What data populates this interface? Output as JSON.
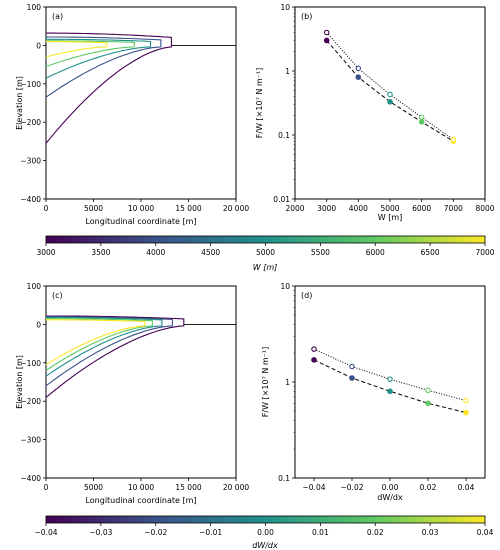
{
  "panels": [
    {
      "label": "(a)",
      "xlabel": "Longitudinal coordinate [m]",
      "ylabel": "Elevation [m]",
      "xticks": [
        "0",
        "5000",
        "10 000",
        "15 000",
        "20 000"
      ],
      "yticks": [
        "100",
        "0",
        "−100",
        "−200",
        "−300",
        "−400"
      ]
    },
    {
      "label": "(b)",
      "xlabel": "W [m]",
      "ylabel": "F/W [×10⁷ N m⁻¹]",
      "xticks": [
        "2000",
        "3000",
        "4000",
        "5000",
        "6000",
        "7000",
        "8000"
      ],
      "yticks": [
        "10",
        "1",
        "0.1",
        "0.01"
      ]
    },
    {
      "label": "(c)",
      "xlabel": "Longitudinal coordinate [m]",
      "ylabel": "Elevation [m]",
      "xticks": [
        "0",
        "5000",
        "10 000",
        "15 000",
        "20 000"
      ],
      "yticks": [
        "100",
        "0",
        "−100",
        "−200",
        "−300",
        "−400"
      ]
    },
    {
      "label": "(d)",
      "xlabel": "dW/dx",
      "ylabel": "F/W [×10⁷ N m⁻¹]",
      "xticks": [
        "−0.04",
        "−0.02",
        "0.00",
        "0.02",
        "0.04"
      ],
      "yticks": [
        "10",
        "1",
        "0.1"
      ]
    }
  ],
  "colorbars": [
    {
      "label": "W [m]",
      "ticks": [
        "3000",
        "3500",
        "4000",
        "4500",
        "5000",
        "5500",
        "6000",
        "6500",
        "7000"
      ]
    },
    {
      "label": "dW/dx",
      "ticks": [
        "−0.04",
        "−0.03",
        "−0.02",
        "−0.01",
        "0.00",
        "0.01",
        "0.02",
        "0.03",
        "0.04"
      ]
    }
  ],
  "colors": {
    "viridis": [
      "#440154",
      "#3b528b",
      "#21918c",
      "#5ec962",
      "#fde725"
    ]
  },
  "chart_data": [
    {
      "type": "line",
      "panel": "(a)",
      "xlim": [
        0,
        20000
      ],
      "ylim": [
        -400,
        100
      ],
      "series": [
        {
          "terminus": 13200,
          "top": 32,
          "bottom": -255,
          "color": "#440154"
        },
        {
          "terminus": 12100,
          "top": 22,
          "bottom": -135,
          "color": "#3b528b"
        },
        {
          "terminus": 11000,
          "top": 16,
          "bottom": -85,
          "color": "#21918c"
        },
        {
          "terminus": 9300,
          "top": 12,
          "bottom": -55,
          "color": "#5ec962"
        },
        {
          "terminus": 6400,
          "top": 10,
          "bottom": -30,
          "color": "#fde725"
        }
      ]
    },
    {
      "type": "scatter",
      "panel": "(b)",
      "xlim": [
        2000,
        8000
      ],
      "ylim": [
        0.01,
        10
      ],
      "yscale": "log",
      "x": [
        3000,
        4000,
        5000,
        6000,
        7000
      ],
      "series": [
        {
          "style": "dashed",
          "marker": "filled",
          "values": [
            3.0,
            0.8,
            0.33,
            0.16,
            0.08
          ]
        },
        {
          "style": "dotted",
          "marker": "open",
          "values": [
            4.0,
            1.1,
            0.43,
            0.19,
            0.085
          ]
        }
      ]
    },
    {
      "type": "line",
      "panel": "(c)",
      "xlim": [
        0,
        20000
      ],
      "ylim": [
        -400,
        100
      ],
      "series": [
        {
          "terminus": 14500,
          "top": 22,
          "bottom": -190,
          "color": "#440154"
        },
        {
          "terminus": 13300,
          "top": 20,
          "bottom": -160,
          "color": "#3b528b"
        },
        {
          "terminus": 12200,
          "top": 18,
          "bottom": -135,
          "color": "#21918c"
        },
        {
          "terminus": 11200,
          "top": 15,
          "bottom": -120,
          "color": "#5ec962"
        },
        {
          "terminus": 10400,
          "top": 12,
          "bottom": -105,
          "color": "#fde725"
        }
      ]
    },
    {
      "type": "scatter",
      "panel": "(d)",
      "xlim": [
        -0.05,
        0.05
      ],
      "ylim": [
        0.1,
        10
      ],
      "yscale": "log",
      "x": [
        -0.04,
        -0.02,
        0.0,
        0.02,
        0.04
      ],
      "series": [
        {
          "style": "dashed",
          "marker": "filled",
          "values": [
            1.7,
            1.1,
            0.8,
            0.6,
            0.48
          ]
        },
        {
          "style": "dotted",
          "marker": "open",
          "values": [
            2.2,
            1.45,
            1.07,
            0.82,
            0.64
          ]
        }
      ]
    }
  ]
}
